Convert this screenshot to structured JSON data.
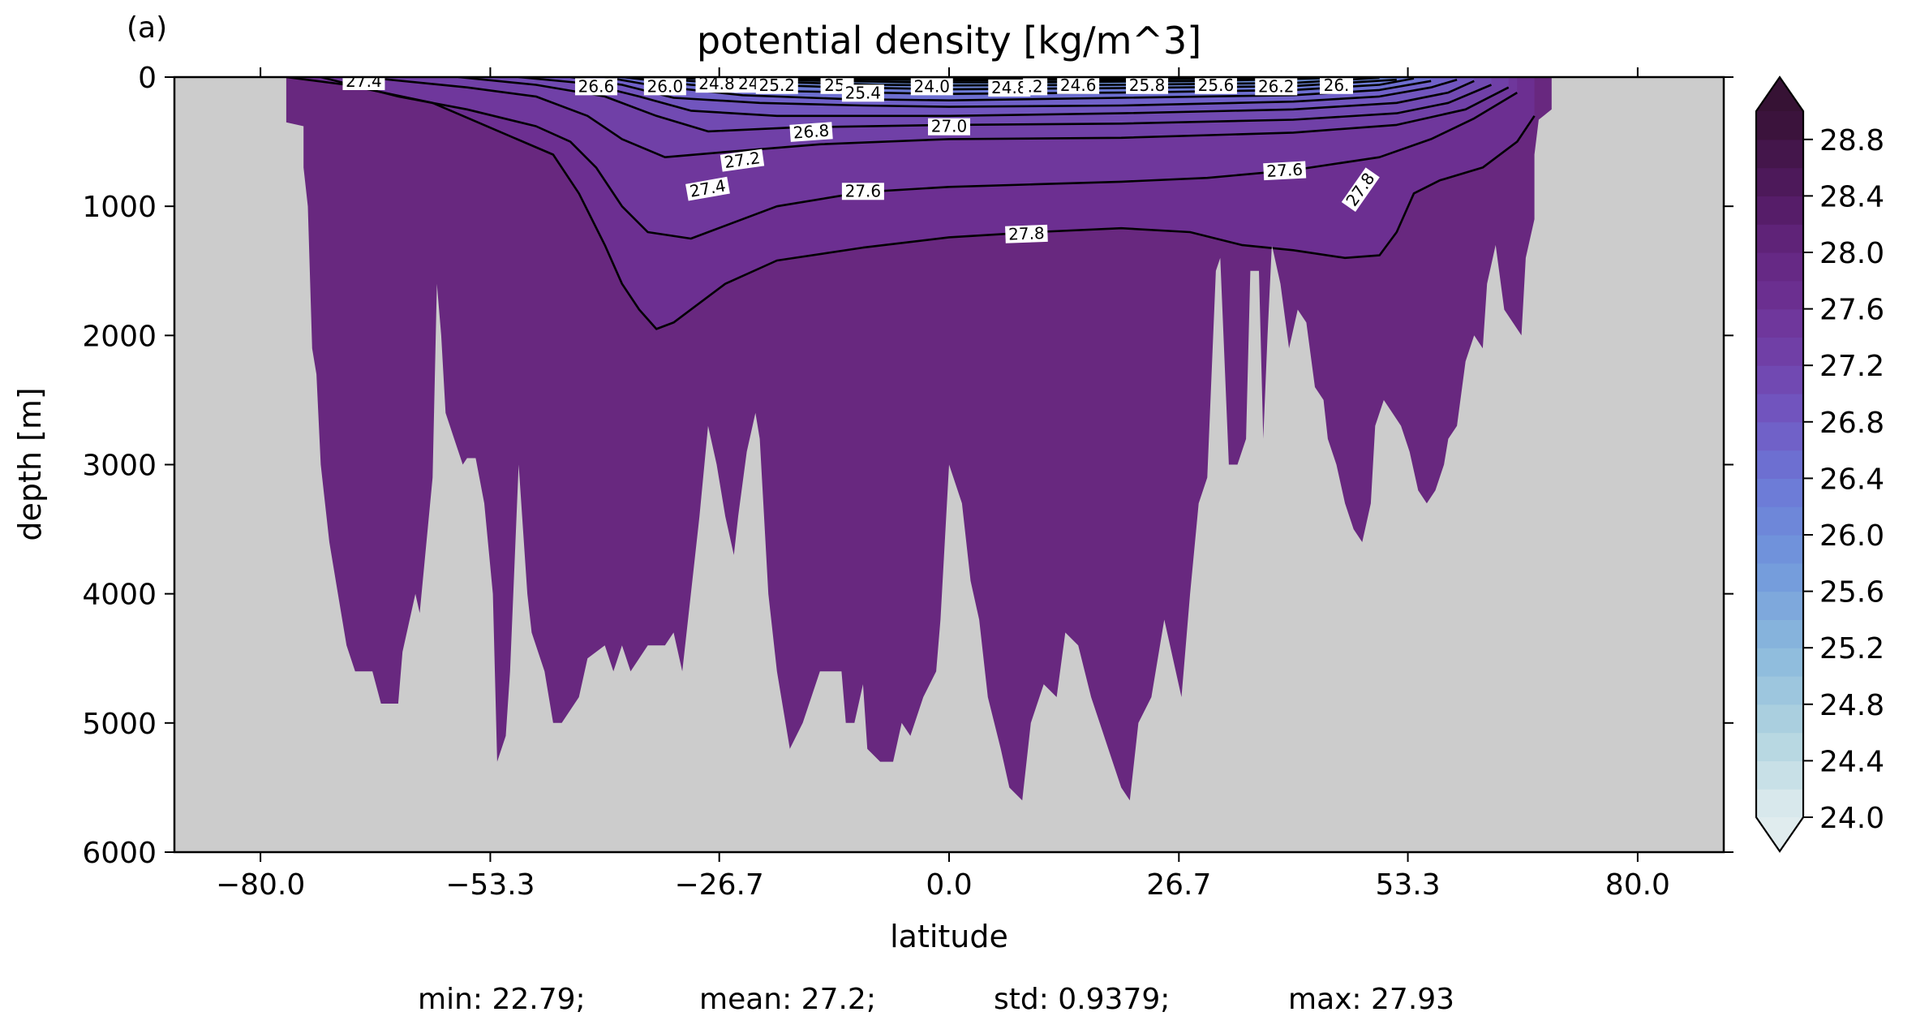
{
  "panel_label": "(a)",
  "chart_data": {
    "type": "contourf",
    "title": "potential density [kg/m^3]",
    "xlabel": "latitude",
    "ylabel": "depth [m]",
    "xlim": [
      -90,
      90
    ],
    "ylim": [
      6000,
      0
    ],
    "xticks": [
      -80.0,
      -53.3,
      -26.7,
      0.0,
      26.7,
      53.3,
      80.0
    ],
    "xtick_labels": [
      "−80.0",
      "−53.3",
      "−26.7",
      "0.0",
      "26.7",
      "53.3",
      "80.0"
    ],
    "yticks": [
      0,
      1000,
      2000,
      3000,
      4000,
      5000,
      6000
    ],
    "ytick_labels": [
      "0",
      "1000",
      "2000",
      "3000",
      "4000",
      "5000",
      "6000"
    ],
    "colorbar": {
      "min": 24.0,
      "max": 29.0,
      "step": 0.2,
      "extend": "both",
      "tick_values": [
        24.0,
        24.4,
        24.8,
        25.2,
        25.6,
        26.0,
        26.4,
        26.8,
        27.2,
        27.6,
        28.0,
        28.4,
        28.8
      ],
      "tick_labels": [
        "24.0",
        "24.4",
        "24.8",
        "25.2",
        "25.6",
        "26.0",
        "26.4",
        "26.8",
        "27.2",
        "27.6",
        "28.0",
        "28.4",
        "28.8"
      ],
      "colormap": "dense"
    },
    "land_color": "#cccccc",
    "deep_water_color": "#68287f",
    "contour_lines": [
      {
        "level": 27.8,
        "points": [
          [
            -77,
            0
          ],
          [
            -70,
            60
          ],
          [
            -60,
            200
          ],
          [
            -53,
            400
          ],
          [
            -46,
            600
          ],
          [
            -43,
            900
          ],
          [
            -40,
            1300
          ],
          [
            -38,
            1600
          ],
          [
            -36,
            1800
          ],
          [
            -34,
            1950
          ],
          [
            -32,
            1900
          ],
          [
            -26,
            1600
          ],
          [
            -20,
            1420
          ],
          [
            -10,
            1320
          ],
          [
            0,
            1240
          ],
          [
            10,
            1200
          ],
          [
            20,
            1170
          ],
          [
            28,
            1200
          ],
          [
            34,
            1300
          ],
          [
            40,
            1340
          ],
          [
            46,
            1400
          ],
          [
            50,
            1380
          ],
          [
            52,
            1200
          ],
          [
            54,
            900
          ],
          [
            57,
            800
          ],
          [
            62,
            700
          ],
          [
            66,
            500
          ],
          [
            68,
            300
          ]
        ]
      },
      {
        "level": 27.6,
        "points": [
          [
            -73,
            0
          ],
          [
            -64,
            150
          ],
          [
            -56,
            250
          ],
          [
            -48,
            380
          ],
          [
            -44,
            500
          ],
          [
            -41,
            700
          ],
          [
            -38,
            1000
          ],
          [
            -35,
            1200
          ],
          [
            -30,
            1250
          ],
          [
            -20,
            1000
          ],
          [
            -10,
            890
          ],
          [
            0,
            850
          ],
          [
            10,
            830
          ],
          [
            20,
            810
          ],
          [
            30,
            780
          ],
          [
            40,
            720
          ],
          [
            50,
            620
          ],
          [
            56,
            480
          ],
          [
            61,
            320
          ],
          [
            66,
            120
          ]
        ]
      },
      {
        "level": 27.4,
        "points": [
          [
            -68,
            0
          ],
          [
            -56,
            80
          ],
          [
            -48,
            150
          ],
          [
            -42,
            300
          ],
          [
            -38,
            480
          ],
          [
            -33,
            620
          ],
          [
            -26,
            580
          ],
          [
            -15,
            520
          ],
          [
            0,
            480
          ],
          [
            20,
            470
          ],
          [
            40,
            430
          ],
          [
            52,
            370
          ],
          [
            60,
            250
          ],
          [
            65,
            80
          ]
        ]
      },
      {
        "level": 27.2,
        "points": [
          [
            -57,
            0
          ],
          [
            -48,
            60
          ],
          [
            -40,
            150
          ],
          [
            -34,
            300
          ],
          [
            -28,
            420
          ],
          [
            -18,
            390
          ],
          [
            0,
            370
          ],
          [
            20,
            360
          ],
          [
            40,
            330
          ],
          [
            52,
            280
          ],
          [
            58,
            200
          ],
          [
            63,
            60
          ]
        ]
      },
      {
        "level": 27.0,
        "points": [
          [
            -50,
            0
          ],
          [
            -42,
            50
          ],
          [
            -36,
            150
          ],
          [
            -30,
            260
          ],
          [
            -20,
            300
          ],
          [
            0,
            300
          ],
          [
            20,
            280
          ],
          [
            40,
            250
          ],
          [
            52,
            200
          ],
          [
            58,
            120
          ],
          [
            61,
            30
          ]
        ]
      },
      {
        "level": 26.8,
        "points": [
          [
            -44,
            0
          ],
          [
            -38,
            60
          ],
          [
            -32,
            160
          ],
          [
            -22,
            200
          ],
          [
            -10,
            220
          ],
          [
            0,
            230
          ],
          [
            20,
            220
          ],
          [
            40,
            190
          ],
          [
            50,
            150
          ],
          [
            56,
            80
          ],
          [
            59,
            20
          ]
        ]
      },
      {
        "level": 26.6,
        "points": [
          [
            -40,
            0
          ],
          [
            -34,
            70
          ],
          [
            -24,
            140
          ],
          [
            -12,
            170
          ],
          [
            0,
            180
          ],
          [
            20,
            160
          ],
          [
            40,
            140
          ],
          [
            50,
            100
          ],
          [
            56,
            30
          ]
        ]
      },
      {
        "level": 26.4,
        "points": [
          [
            -38,
            0
          ],
          [
            -30,
            60
          ],
          [
            -18,
            110
          ],
          [
            0,
            130
          ],
          [
            20,
            120
          ],
          [
            40,
            100
          ],
          [
            50,
            60
          ],
          [
            54,
            10
          ]
        ]
      },
      {
        "level": 26.2,
        "points": [
          [
            -36,
            0
          ],
          [
            -26,
            50
          ],
          [
            -12,
            80
          ],
          [
            0,
            95
          ],
          [
            20,
            85
          ],
          [
            40,
            70
          ],
          [
            52,
            20
          ]
        ]
      },
      {
        "level": 26.0,
        "points": [
          [
            -34,
            0
          ],
          [
            -22,
            35
          ],
          [
            -8,
            60
          ],
          [
            0,
            65
          ],
          [
            20,
            60
          ],
          [
            40,
            45
          ],
          [
            50,
            5
          ]
        ]
      },
      {
        "level": 25.6,
        "points": [
          [
            -30,
            0
          ],
          [
            -18,
            25
          ],
          [
            -4,
            40
          ],
          [
            10,
            40
          ],
          [
            30,
            30
          ],
          [
            46,
            5
          ]
        ]
      },
      {
        "level": 25.2,
        "points": [
          [
            -26,
            0
          ],
          [
            -14,
            15
          ],
          [
            0,
            25
          ],
          [
            20,
            20
          ],
          [
            42,
            3
          ]
        ]
      },
      {
        "level": 24.8,
        "points": [
          [
            -22,
            0
          ],
          [
            -10,
            8
          ],
          [
            4,
            12
          ],
          [
            26,
            8
          ],
          [
            38,
            0
          ]
        ]
      }
    ],
    "inline_labels": [
      {
        "text": "27.4",
        "x": -68,
        "y": 0,
        "angle": 0
      },
      {
        "text": "26.6",
        "x": -41,
        "y": 40,
        "angle": 0
      },
      {
        "text": "26.0",
        "x": -33,
        "y": 40,
        "angle": 0
      },
      {
        "text": "24.8",
        "x": -27,
        "y": 20,
        "angle": 0
      },
      {
        "text": "24.",
        "x": -23,
        "y": 20,
        "angle": 0
      },
      {
        "text": "25.2",
        "x": -20,
        "y": 30,
        "angle": 0
      },
      {
        "text": "25.",
        "x": -13,
        "y": 30,
        "angle": 0
      },
      {
        "text": "25.4",
        "x": -10,
        "y": 90,
        "angle": 0
      },
      {
        "text": "24.0",
        "x": -2,
        "y": 40,
        "angle": 0
      },
      {
        "text": "24.8",
        "x": 7,
        "y": 50,
        "angle": 0
      },
      {
        "text": ".2",
        "x": 10,
        "y": 40,
        "angle": 0
      },
      {
        "text": "24.6",
        "x": 15,
        "y": 30,
        "angle": 0
      },
      {
        "text": "25.8",
        "x": 23,
        "y": 30,
        "angle": 0
      },
      {
        "text": "25.6",
        "x": 31,
        "y": 30,
        "angle": 0
      },
      {
        "text": "26.2",
        "x": 38,
        "y": 40,
        "angle": 0
      },
      {
        "text": "26.",
        "x": 45,
        "y": 30,
        "angle": 0
      },
      {
        "text": "26.8",
        "x": -16,
        "y": 390,
        "angle": -4
      },
      {
        "text": "27.0",
        "x": 0,
        "y": 350,
        "angle": 0
      },
      {
        "text": "27.2",
        "x": -24,
        "y": 610,
        "angle": -8
      },
      {
        "text": "27.4",
        "x": -28,
        "y": 830,
        "angle": -10
      },
      {
        "text": "27.6",
        "x": -10,
        "y": 850,
        "angle": 0
      },
      {
        "text": "27.6",
        "x": 39,
        "y": 690,
        "angle": -3
      },
      {
        "text": "27.8",
        "x": 9,
        "y": 1180,
        "angle": -2
      },
      {
        "text": "27.8",
        "x": 48,
        "y": 830,
        "angle": -55
      }
    ],
    "seafloor_depth": [
      [
        -90,
        0
      ],
      [
        -77,
        0
      ],
      [
        -77,
        350
      ],
      [
        -75,
        380
      ],
      [
        -75,
        700
      ],
      [
        -74.5,
        1000
      ],
      [
        -74,
        2100
      ],
      [
        -73.5,
        2300
      ],
      [
        -73,
        3000
      ],
      [
        -72,
        3600
      ],
      [
        -71,
        4000
      ],
      [
        -70,
        4400
      ],
      [
        -69,
        4600
      ],
      [
        -67,
        4600
      ],
      [
        -66,
        4850
      ],
      [
        -64,
        4850
      ],
      [
        -63.5,
        4450
      ],
      [
        -62,
        4000
      ],
      [
        -61.5,
        4150
      ],
      [
        -60,
        3100
      ],
      [
        -59.5,
        1600
      ],
      [
        -59,
        2000
      ],
      [
        -58.5,
        2600
      ],
      [
        -57.5,
        2800
      ],
      [
        -56.5,
        3000
      ],
      [
        -56,
        2950
      ],
      [
        -55,
        2950
      ],
      [
        -54,
        3300
      ],
      [
        -53,
        4000
      ],
      [
        -52.5,
        5300
      ],
      [
        -51.5,
        5100
      ],
      [
        -51,
        4600
      ],
      [
        -50,
        3000
      ],
      [
        -49,
        4000
      ],
      [
        -48.5,
        4300
      ],
      [
        -47,
        4600
      ],
      [
        -46,
        5000
      ],
      [
        -45,
        5000
      ],
      [
        -43,
        4800
      ],
      [
        -42,
        4500
      ],
      [
        -40,
        4400
      ],
      [
        -39,
        4600
      ],
      [
        -38,
        4400
      ],
      [
        -37,
        4600
      ],
      [
        -35,
        4400
      ],
      [
        -33,
        4400
      ],
      [
        -32,
        4300
      ],
      [
        -31,
        4600
      ],
      [
        -30,
        4000
      ],
      [
        -29,
        3400
      ],
      [
        -28,
        2700
      ],
      [
        -27,
        3000
      ],
      [
        -26,
        3400
      ],
      [
        -25,
        3700
      ],
      [
        -24.5,
        3400
      ],
      [
        -23.5,
        2900
      ],
      [
        -22.5,
        2600
      ],
      [
        -22,
        2800
      ],
      [
        -21,
        4000
      ],
      [
        -20,
        4600
      ],
      [
        -18.5,
        5200
      ],
      [
        -17,
        5000
      ],
      [
        -15,
        4600
      ],
      [
        -12.5,
        4600
      ],
      [
        -12,
        5000
      ],
      [
        -11,
        5000
      ],
      [
        -10,
        4700
      ],
      [
        -9.5,
        5200
      ],
      [
        -8,
        5300
      ],
      [
        -6.5,
        5300
      ],
      [
        -5.5,
        5000
      ],
      [
        -4.5,
        5100
      ],
      [
        -3,
        4800
      ],
      [
        -1.5,
        4600
      ],
      [
        -1,
        4200
      ],
      [
        0,
        3000
      ],
      [
        0.5,
        3100
      ],
      [
        1.5,
        3300
      ],
      [
        2.5,
        3900
      ],
      [
        3.5,
        4200
      ],
      [
        4.5,
        4800
      ],
      [
        6,
        5200
      ],
      [
        7,
        5500
      ],
      [
        8.5,
        5600
      ],
      [
        9.5,
        5000
      ],
      [
        11,
        4700
      ],
      [
        12.5,
        4800
      ],
      [
        13.5,
        4300
      ],
      [
        15,
        4400
      ],
      [
        16.5,
        4800
      ],
      [
        17.5,
        5000
      ],
      [
        18.5,
        5200
      ],
      [
        20,
        5500
      ],
      [
        21,
        5600
      ],
      [
        22,
        5000
      ],
      [
        23.5,
        4800
      ],
      [
        25,
        4200
      ],
      [
        26,
        4500
      ],
      [
        27,
        4800
      ],
      [
        28,
        4000
      ],
      [
        29,
        3300
      ],
      [
        30,
        3100
      ],
      [
        31,
        1500
      ],
      [
        31.5,
        1400
      ],
      [
        32.5,
        3000
      ],
      [
        33.5,
        3000
      ],
      [
        34.5,
        2800
      ],
      [
        35,
        1500
      ],
      [
        36,
        1500
      ],
      [
        36.5,
        2800
      ],
      [
        37,
        2000
      ],
      [
        37.5,
        1300
      ],
      [
        38.5,
        1600
      ],
      [
        39.5,
        2100
      ],
      [
        40.5,
        1800
      ],
      [
        41.5,
        1900
      ],
      [
        42.5,
        2400
      ],
      [
        43.5,
        2500
      ],
      [
        44,
        2800
      ],
      [
        45,
        3000
      ],
      [
        46,
        3300
      ],
      [
        47,
        3500
      ],
      [
        48,
        3600
      ],
      [
        49,
        3300
      ],
      [
        49.5,
        2700
      ],
      [
        50.5,
        2500
      ],
      [
        51.5,
        2600
      ],
      [
        52.5,
        2700
      ],
      [
        53.5,
        2900
      ],
      [
        54.5,
        3200
      ],
      [
        55.5,
        3300
      ],
      [
        56.5,
        3200
      ],
      [
        57.5,
        3000
      ],
      [
        58,
        2800
      ],
      [
        59,
        2700
      ],
      [
        60,
        2200
      ],
      [
        61,
        2000
      ],
      [
        62,
        2100
      ],
      [
        62.5,
        1600
      ],
      [
        63.5,
        1300
      ],
      [
        64.5,
        1800
      ],
      [
        65.5,
        1900
      ],
      [
        66.5,
        2000
      ],
      [
        67,
        1400
      ],
      [
        68,
        1100
      ],
      [
        68,
        600
      ],
      [
        68.5,
        330
      ],
      [
        70,
        250
      ],
      [
        70,
        0
      ],
      [
        90,
        0
      ]
    ],
    "stats": {
      "min": 22.79,
      "mean": 27.2,
      "std": 0.9379,
      "max": 27.93
    },
    "stats_text": [
      {
        "key": "min",
        "text": "min: 22.79;"
      },
      {
        "key": "mean",
        "text": "mean: 27.2;"
      },
      {
        "key": "std",
        "text": "std: 0.9379;"
      },
      {
        "key": "max",
        "text": "max: 27.93"
      }
    ]
  }
}
